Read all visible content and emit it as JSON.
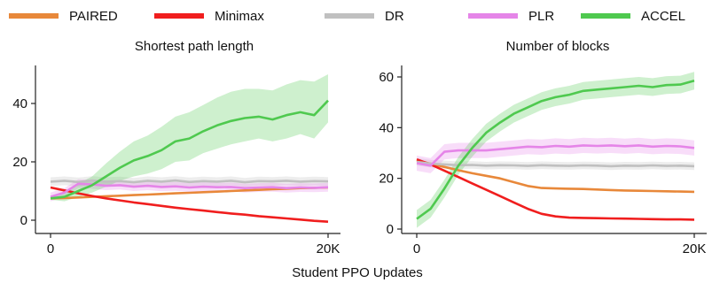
{
  "figure": {
    "xlabel": "Student PPO Updates"
  },
  "legend": [
    {
      "name": "PAIRED",
      "color": "#E8883A"
    },
    {
      "name": "Minimax",
      "color": "#F01E1E"
    },
    {
      "name": "DR",
      "color": "#C0C0C0"
    },
    {
      "name": "PLR",
      "color": "#E585E8"
    },
    {
      "name": "ACCEL",
      "color": "#4FC94F"
    }
  ],
  "chart_data": [
    {
      "type": "line",
      "title": "Shortest path length",
      "xlabel": "",
      "ylabel": "",
      "xlim": [
        0,
        20000
      ],
      "ylim": [
        -2,
        52
      ],
      "xticks": [
        0,
        20000
      ],
      "xticklabels": [
        "0",
        "20K"
      ],
      "yticks": [
        0,
        20,
        40
      ],
      "yticklabels": [
        "0",
        "20",
        "40"
      ],
      "x": [
        0,
        1000,
        2000,
        3000,
        4000,
        5000,
        6000,
        7000,
        8000,
        9000,
        10000,
        11000,
        12000,
        13000,
        14000,
        15000,
        16000,
        17000,
        18000,
        19000,
        20000
      ],
      "series": [
        {
          "name": "PAIRED",
          "color": "#E8883A",
          "values": [
            7.5,
            7.6,
            7.8,
            8.0,
            8.2,
            8.4,
            8.6,
            8.8,
            9.0,
            9.2,
            9.4,
            9.6,
            9.8,
            10.0,
            10.2,
            10.4,
            10.6,
            10.8,
            11.0,
            11.1,
            11.2
          ]
        },
        {
          "name": "Minimax",
          "color": "#F01E1E",
          "values": [
            11.2,
            10.2,
            9.2,
            8.3,
            7.5,
            6.8,
            6.1,
            5.5,
            4.9,
            4.3,
            3.8,
            3.3,
            2.8,
            2.3,
            1.9,
            1.4,
            1.0,
            0.6,
            0.2,
            -0.2,
            -0.5
          ]
        },
        {
          "name": "DR",
          "color": "#C0C0C0",
          "band": 1.5,
          "values": [
            13.2,
            13.5,
            13.1,
            13.6,
            13.2,
            13.4,
            13.0,
            13.5,
            13.2,
            13.6,
            13.1,
            13.4,
            13.2,
            13.5,
            13.0,
            13.4,
            13.3,
            13.5,
            13.2,
            13.4,
            13.3
          ]
        },
        {
          "name": "PLR",
          "color": "#E585E8",
          "band": 1.5,
          "values": [
            8.0,
            9.5,
            12.5,
            12.3,
            11.8,
            12.0,
            11.5,
            11.8,
            11.4,
            11.6,
            11.2,
            11.5,
            11.3,
            11.4,
            11.0,
            11.2,
            11.3,
            11.0,
            11.2,
            11.1,
            11.3
          ]
        },
        {
          "name": "ACCEL",
          "color": "#4FC94F",
          "band_lower": [
            0.5,
            1.5,
            2.0,
            2.5,
            3.5,
            4.5,
            5.5,
            6.0,
            6.5,
            7.0,
            7.5,
            7.5,
            8.0,
            8.0,
            8.0,
            7.5,
            7.5,
            8.0,
            7.5,
            8.0,
            7.5
          ],
          "band_upper": [
            0.5,
            1.5,
            2.5,
            3.0,
            4.5,
            5.5,
            6.5,
            7.0,
            8.0,
            8.5,
            9.0,
            9.0,
            9.5,
            10.0,
            10.0,
            9.5,
            10.0,
            10.5,
            11.0,
            11.5,
            9.0
          ],
          "values": [
            7.5,
            8.0,
            10.0,
            12.0,
            15.0,
            18.0,
            20.5,
            22.0,
            24.0,
            27.0,
            28.0,
            30.5,
            32.5,
            34.0,
            35.0,
            35.5,
            34.5,
            36.0,
            37.0,
            36.0,
            41.0
          ]
        }
      ]
    },
    {
      "type": "line",
      "title": "Number of blocks",
      "xlabel": "",
      "ylabel": "",
      "xlim": [
        0,
        20000
      ],
      "ylim": [
        0,
        63
      ],
      "xticks": [
        0,
        20000
      ],
      "xticklabels": [
        "0",
        "20K"
      ],
      "yticks": [
        0,
        20,
        40,
        60
      ],
      "yticklabels": [
        "0",
        "20",
        "40",
        "60"
      ],
      "x": [
        0,
        1000,
        2000,
        3000,
        4000,
        5000,
        6000,
        7000,
        8000,
        9000,
        10000,
        11000,
        12000,
        13000,
        14000,
        15000,
        16000,
        17000,
        18000,
        19000,
        20000
      ],
      "series": [
        {
          "name": "PAIRED",
          "color": "#E8883A",
          "values": [
            27.0,
            25.8,
            24.5,
            23.2,
            22.0,
            21.0,
            20.0,
            18.5,
            17.0,
            16.2,
            16.0,
            15.9,
            15.8,
            15.6,
            15.4,
            15.2,
            15.1,
            15.0,
            14.9,
            14.8,
            14.7
          ]
        },
        {
          "name": "Minimax",
          "color": "#F01E1E",
          "values": [
            27.5,
            25.5,
            23.0,
            20.5,
            18.0,
            15.5,
            13.0,
            10.5,
            8.0,
            6.0,
            5.0,
            4.5,
            4.4,
            4.3,
            4.2,
            4.1,
            4.0,
            3.9,
            3.8,
            3.8,
            3.7
          ]
        },
        {
          "name": "DR",
          "color": "#C0C0C0",
          "band": 1.5,
          "values": [
            26.5,
            25.8,
            25.5,
            25.2,
            25.3,
            25.0,
            25.2,
            25.1,
            24.9,
            25.2,
            25.0,
            24.9,
            25.1,
            25.0,
            24.8,
            25.0,
            24.9,
            25.1,
            24.9,
            25.0,
            24.8
          ]
        },
        {
          "name": "PLR",
          "color": "#E585E8",
          "band": 3.0,
          "values": [
            26.0,
            25.0,
            30.5,
            31.0,
            31.0,
            31.0,
            31.5,
            32.0,
            32.5,
            32.3,
            32.8,
            32.5,
            33.0,
            32.8,
            33.0,
            32.7,
            33.0,
            32.5,
            32.8,
            32.6,
            32.0
          ]
        },
        {
          "name": "ACCEL",
          "color": "#4FC94F",
          "band": 3.5,
          "values": [
            4.0,
            8.0,
            16.0,
            25.0,
            32.0,
            38.0,
            42.0,
            45.5,
            48.0,
            50.5,
            52.0,
            53.0,
            54.5,
            55.0,
            55.5,
            56.0,
            56.5,
            56.0,
            56.8,
            57.0,
            58.5
          ]
        }
      ]
    }
  ]
}
